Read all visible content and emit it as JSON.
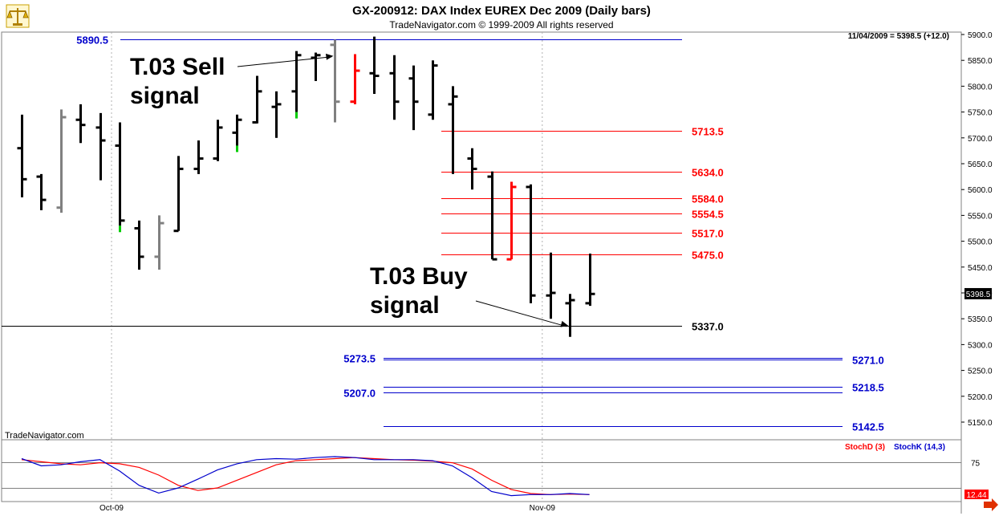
{
  "header": {
    "title": "GX-200912:  DAX Index EUREX Dec 2009  (Daily bars)",
    "copyright": "TradeNavigator.com © 1999-2009 All rights reserved",
    "last_quote": "11/04/2009 = 5398.5 (+12.0)",
    "logo_icon": "scales-icon"
  },
  "watermark": "TradeNavigator.com",
  "colors": {
    "up_bar": "#000000",
    "neutral_bar": "#808080",
    "signal_sell_bar": "#ff0000",
    "signal_buy_tick": "#00cc00",
    "resistance_line": "#ff0000",
    "support_line": "#0000cc",
    "stoch_d": "#ff0000",
    "stoch_k": "#0000cc",
    "price_badge": "#000000",
    "stoch_badge": "#ff0000"
  },
  "chart_data": [
    {
      "type": "ohlc",
      "title": "GX-200912:  DAX Index EUREX Dec 2009  (Daily bars)",
      "ylim": [
        5100,
        5920
      ],
      "y_ticks": [
        "5150.0",
        "5200.0",
        "5250.0",
        "5300.0",
        "5350.0",
        "5400.0",
        "5450.0",
        "5500.0",
        "5550.0",
        "5600.0",
        "5650.0",
        "5700.0",
        "5750.0",
        "5800.0",
        "5850.0",
        "5900.0"
      ],
      "x_labels": [
        {
          "label": "Oct-09",
          "bar_index": 5
        },
        {
          "label": "Nov-09",
          "bar_index": 27
        }
      ],
      "current_price": "5398.5",
      "bars": [
        {
          "o": 5680,
          "h": 5745,
          "l": 5585,
          "c": 5620,
          "color": "black"
        },
        {
          "o": 5625,
          "h": 5630,
          "l": 5560,
          "c": 5580,
          "color": "black"
        },
        {
          "o": 5565,
          "h": 5755,
          "l": 5555,
          "c": 5740,
          "color": "gray"
        },
        {
          "o": 5735,
          "h": 5765,
          "l": 5690,
          "c": 5725,
          "color": "black"
        },
        {
          "o": 5720,
          "h": 5748,
          "l": 5618,
          "c": 5695,
          "color": "black"
        },
        {
          "o": 5685,
          "h": 5730,
          "l": 5530,
          "c": 5540,
          "color": "black"
        },
        {
          "o": 5525,
          "h": 5540,
          "l": 5445,
          "c": 5470,
          "color": "black"
        },
        {
          "o": 5470,
          "h": 5550,
          "l": 5445,
          "c": 5535,
          "color": "gray"
        },
        {
          "o": 5520,
          "h": 5665,
          "l": 5520,
          "c": 5640,
          "color": "black"
        },
        {
          "o": 5640,
          "h": 5695,
          "l": 5630,
          "c": 5660,
          "color": "black"
        },
        {
          "o": 5660,
          "h": 5735,
          "l": 5655,
          "c": 5720,
          "color": "black"
        },
        {
          "o": 5710,
          "h": 5745,
          "l": 5685,
          "c": 5735,
          "color": "black"
        },
        {
          "o": 5730,
          "h": 5820,
          "l": 5728,
          "c": 5790,
          "color": "black"
        },
        {
          "o": 5760,
          "h": 5790,
          "l": 5700,
          "c": 5765,
          "color": "black"
        },
        {
          "o": 5790,
          "h": 5868,
          "l": 5750,
          "c": 5860,
          "color": "black"
        },
        {
          "o": 5855,
          "h": 5865,
          "l": 5810,
          "c": 5860,
          "color": "black"
        },
        {
          "o": 5880,
          "h": 5890,
          "l": 5730,
          "c": 5770,
          "color": "gray"
        },
        {
          "o": 5770,
          "h": 5862,
          "l": 5765,
          "c": 5830,
          "color": "red"
        },
        {
          "o": 5825,
          "h": 5896,
          "l": 5785,
          "c": 5820,
          "color": "black"
        },
        {
          "o": 5825,
          "h": 5860,
          "l": 5735,
          "c": 5770,
          "color": "black"
        },
        {
          "o": 5815,
          "h": 5840,
          "l": 5715,
          "c": 5770,
          "color": "black"
        },
        {
          "o": 5745,
          "h": 5850,
          "l": 5735,
          "c": 5840,
          "color": "black"
        },
        {
          "o": 5765,
          "h": 5800,
          "l": 5630,
          "c": 5780,
          "color": "black"
        },
        {
          "o": 5660,
          "h": 5680,
          "l": 5600,
          "c": 5640,
          "color": "black"
        },
        {
          "o": 5625,
          "h": 5635,
          "l": 5465,
          "c": 5465,
          "color": "black"
        },
        {
          "o": 5465,
          "h": 5615,
          "l": 5465,
          "c": 5605,
          "color": "red"
        },
        {
          "o": 5605,
          "h": 5610,
          "l": 5380,
          "c": 5395,
          "color": "black"
        },
        {
          "o": 5395,
          "h": 5478,
          "l": 5350,
          "c": 5400,
          "color": "black"
        },
        {
          "o": 5380,
          "h": 5398,
          "l": 5315,
          "c": 5386,
          "color": "black"
        },
        {
          "o": 5380,
          "h": 5476,
          "l": 5375,
          "c": 5398,
          "color": "black"
        }
      ],
      "levels": [
        {
          "label": "5890.5",
          "value": 5890.5,
          "color": "blue",
          "label_side": "left"
        },
        {
          "label": "5713.5",
          "value": 5713.5,
          "color": "red",
          "label_side": "right"
        },
        {
          "label": "5634.0",
          "value": 5634.0,
          "color": "red",
          "label_side": "right"
        },
        {
          "label": "5584.0",
          "value": 5584.0,
          "color": "red",
          "label_side": "right"
        },
        {
          "label": "5554.5",
          "value": 5554.5,
          "color": "red",
          "label_side": "right"
        },
        {
          "label": "5517.0",
          "value": 5517.0,
          "color": "red",
          "label_side": "right"
        },
        {
          "label": "5475.0",
          "value": 5475.0,
          "color": "red",
          "label_side": "right"
        },
        {
          "label": "5337.0",
          "value": 5337.0,
          "color": "black",
          "label_side": "right"
        },
        {
          "label": "5273.5",
          "value": 5273.5,
          "color": "blue",
          "label_side": "left"
        },
        {
          "label": "5271.0",
          "value": 5271.0,
          "color": "blue",
          "label_side": "right"
        },
        {
          "label": "5218.5",
          "value": 5218.5,
          "color": "blue",
          "label_side": "right"
        },
        {
          "label": "5207.0",
          "value": 5207.0,
          "color": "blue",
          "label_side": "left"
        },
        {
          "label": "5142.5",
          "value": 5142.5,
          "color": "blue",
          "label_side": "right"
        }
      ],
      "annotations": [
        {
          "text_lines": [
            "T.03 Sell",
            "signal"
          ],
          "target_bar_index": 16,
          "target_value": 5860
        },
        {
          "text_lines": [
            "T.03 Buy",
            "signal"
          ],
          "target_bar_index": 28,
          "target_value": 5338
        }
      ]
    },
    {
      "type": "line",
      "title": "",
      "ylim": [
        0,
        100
      ],
      "y_ticks": [
        "75",
        "25"
      ],
      "current_value": "12.44",
      "series": [
        {
          "name": "StochD (3)",
          "color": "red",
          "values": [
            80,
            76,
            72,
            70,
            74,
            72,
            65,
            50,
            30,
            20,
            25,
            40,
            55,
            70,
            78,
            80,
            82,
            84,
            82,
            80,
            79,
            77,
            74,
            62,
            40,
            22,
            14,
            12,
            13,
            12
          ]
        },
        {
          "name": "StochK (14,3)",
          "color": "blue",
          "values": [
            82,
            68,
            70,
            76,
            80,
            58,
            30,
            15,
            25,
            42,
            60,
            72,
            80,
            82,
            81,
            84,
            86,
            84,
            80,
            80,
            80,
            78,
            68,
            45,
            18,
            10,
            12,
            12,
            14,
            12
          ]
        }
      ]
    }
  ]
}
